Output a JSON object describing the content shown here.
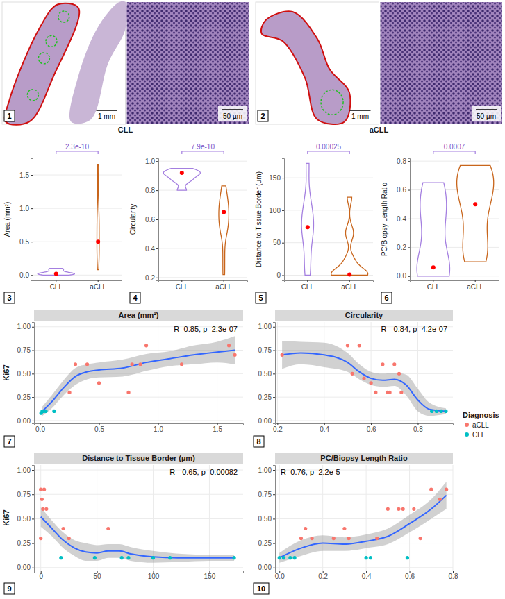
{
  "chart_data": [
    {
      "type": "image",
      "panel_label": "1",
      "title": "CLL",
      "scale_bars": [
        "1 mm",
        "50 µm"
      ]
    },
    {
      "type": "image",
      "panel_label": "2",
      "title": "aCLL",
      "scale_bars": [
        "1 mm",
        "50 µm"
      ]
    },
    {
      "type": "violin",
      "panel_label": "3",
      "ylabel": "Area (mm²)",
      "categories": [
        "CLL",
        "aCLL"
      ],
      "values": [
        [
          0.0,
          0.01,
          0.02,
          0.02,
          0.03,
          0.05,
          0.08,
          0.1
        ],
        [
          0.08,
          0.25,
          0.3,
          0.4,
          0.5,
          0.5,
          0.75,
          0.78,
          0.85,
          0.9,
          1.2,
          1.6,
          1.65
        ]
      ],
      "medians": [
        0.02,
        0.5
      ],
      "colors": [
        "#a47fe0",
        "#c8651b"
      ],
      "annotation": "2.3e-10",
      "ylim": [
        -0.08,
        1.75
      ],
      "yticks": [
        {
          "value": 0,
          "label": "0.0"
        },
        0.5,
        {
          "value": 1,
          "label": "1.0"
        },
        1.5
      ],
      "grid": true
    },
    {
      "type": "violin",
      "panel_label": "4",
      "ylabel": "Circularity",
      "categories": [
        "CLL",
        "aCLL"
      ],
      "values": [
        [
          0.8,
          0.86,
          0.88,
          0.9,
          0.92,
          0.92,
          0.93,
          0.95
        ],
        [
          0.22,
          0.35,
          0.5,
          0.52,
          0.55,
          0.57,
          0.6,
          0.62,
          0.65,
          0.67,
          0.7,
          0.72,
          0.73,
          0.8,
          0.83
        ]
      ],
      "medians": [
        0.92,
        0.65
      ],
      "colors": [
        "#a47fe0",
        "#c8651b"
      ],
      "annotation": "7.9e-10",
      "ylim": [
        0.18,
        1.02
      ],
      "yticks": [
        0.2,
        0.4,
        0.6,
        0.8,
        {
          "value": 1,
          "label": "1.0"
        }
      ],
      "grid": true
    },
    {
      "type": "violin",
      "panel_label": "5",
      "ylabel": "Distance to Tissue Border (µm)",
      "categories": [
        "CLL",
        "aCLL"
      ],
      "values": [
        [
          0,
          18,
          48,
          72,
          75,
          78,
          100,
          115,
          172
        ],
        [
          0,
          0,
          0,
          1,
          1,
          2,
          3,
          5,
          20,
          25,
          60,
          70,
          120
        ]
      ],
      "medians": [
        74,
        1
      ],
      "colors": [
        "#a47fe0",
        "#c8651b"
      ],
      "annotation": "0.00025",
      "ylim": [
        -8,
        180
      ],
      "yticks": [
        0,
        50,
        100,
        150
      ],
      "grid": true
    },
    {
      "type": "violin",
      "panel_label": "6",
      "ylabel": "PC/Biopsy Length Ratio",
      "categories": [
        "CLL",
        "aCLL"
      ],
      "values": [
        [
          0,
          0.02,
          0.05,
          0.07,
          0.4,
          0.42,
          0.59,
          0.65
        ],
        [
          0.1,
          0.12,
          0.15,
          0.25,
          0.3,
          0.45,
          0.5,
          0.55,
          0.6,
          0.65,
          0.7,
          0.74,
          0.77,
          0.77
        ]
      ],
      "medians": [
        0.06,
        0.5
      ],
      "colors": [
        "#a47fe0",
        "#c8651b"
      ],
      "annotation": "0.0007",
      "ylim": [
        -0.03,
        0.82
      ],
      "yticks": [
        {
          "value": 0,
          "label": "0.0"
        },
        0.2,
        0.4,
        0.6,
        0.8
      ],
      "grid": true
    },
    {
      "type": "scatter",
      "panel_label": "7",
      "title": "Area (mm²)",
      "ylabel": "Ki67",
      "annotation": "R=0.85, p=2.3e-07",
      "legend": "right",
      "legend_title": "Diagnosis",
      "series": [
        {
          "name": "aCLL",
          "color": "#f8766d",
          "x": [
            0.25,
            0.3,
            0.4,
            0.5,
            0.75,
            0.78,
            0.85,
            0.9,
            1.2,
            1.6,
            1.65
          ],
          "values": [
            0.3,
            0.6,
            0.6,
            0.4,
            0.3,
            0.6,
            0.6,
            0.8,
            0.6,
            0.8,
            0.7
          ]
        },
        {
          "name": "CLL",
          "color": "#00bfc4",
          "x": [
            0.01,
            0.02,
            0.03,
            0.05,
            0.12
          ],
          "values": [
            0.08,
            0.1,
            0.1,
            0.1,
            0.1
          ]
        }
      ],
      "fit": {
        "x": [
          0.02,
          0.1,
          0.2,
          0.3,
          0.4,
          0.5,
          0.7,
          0.9,
          1.1,
          1.3,
          1.5,
          1.65
        ],
        "values": [
          0.1,
          0.2,
          0.35,
          0.47,
          0.52,
          0.54,
          0.56,
          0.62,
          0.66,
          0.7,
          0.73,
          0.75
        ],
        "lower": [
          0.05,
          0.13,
          0.27,
          0.38,
          0.44,
          0.46,
          0.47,
          0.53,
          0.58,
          0.6,
          0.62,
          0.6
        ],
        "upper": [
          0.15,
          0.27,
          0.43,
          0.56,
          0.6,
          0.62,
          0.65,
          0.71,
          0.74,
          0.8,
          0.84,
          0.9
        ]
      },
      "xlim": [
        -0.05,
        1.72
      ],
      "xticks": [
        {
          "value": 0,
          "label": "0.0"
        },
        0.5,
        {
          "value": 1,
          "label": "1.0"
        },
        1.5
      ],
      "ylim": [
        -0.03,
        1.05
      ],
      "yticks": [
        {
          "value": 0,
          "label": "0.00"
        },
        0.25,
        {
          "value": 0.5,
          "label": "0.50"
        },
        0.75,
        {
          "value": 1,
          "label": "1.00"
        }
      ],
      "grid": true
    },
    {
      "type": "scatter",
      "panel_label": "8",
      "title": "Circularity",
      "annotation": "R=-0.84, p=4.2e-07",
      "series": [
        {
          "name": "aCLL",
          "color": "#f8766d",
          "x": [
            0.22,
            0.5,
            0.52,
            0.55,
            0.57,
            0.6,
            0.62,
            0.65,
            0.67,
            0.68,
            0.7,
            0.72,
            0.73
          ],
          "values": [
            0.7,
            0.8,
            0.5,
            0.8,
            0.45,
            0.4,
            0.3,
            0.6,
            0.3,
            0.3,
            0.6,
            0.5,
            0.3
          ]
        },
        {
          "name": "CLL",
          "color": "#00bfc4",
          "x": [
            0.86,
            0.88,
            0.9,
            0.92
          ],
          "values": [
            0.1,
            0.1,
            0.1,
            0.1
          ]
        }
      ],
      "fit": {
        "x": [
          0.22,
          0.3,
          0.4,
          0.5,
          0.55,
          0.6,
          0.65,
          0.7,
          0.75,
          0.8,
          0.85,
          0.92
        ],
        "values": [
          0.7,
          0.72,
          0.7,
          0.62,
          0.52,
          0.45,
          0.43,
          0.44,
          0.38,
          0.22,
          0.12,
          0.1
        ],
        "lower": [
          0.55,
          0.6,
          0.57,
          0.52,
          0.44,
          0.38,
          0.36,
          0.37,
          0.27,
          0.1,
          0.05,
          0.07
        ],
        "upper": [
          0.85,
          0.84,
          0.83,
          0.72,
          0.6,
          0.52,
          0.5,
          0.51,
          0.49,
          0.34,
          0.19,
          0.13
        ]
      },
      "xlim": [
        0.19,
        0.95
      ],
      "xticks": [
        0.2,
        0.4,
        0.6,
        0.8
      ],
      "ylim": [
        -0.03,
        1.05
      ],
      "yticks": [
        {
          "value": 0,
          "label": "0.00"
        },
        0.25,
        {
          "value": 0.5,
          "label": "0.50"
        },
        0.75,
        {
          "value": 1,
          "label": "1.00"
        }
      ],
      "grid": true
    },
    {
      "type": "scatter",
      "panel_label": "9",
      "title": "Distance to Tissue Border (µm)",
      "ylabel": "Ki67",
      "annotation": "R=-0.65, p=0.00082",
      "series": [
        {
          "name": "aCLL",
          "color": "#f8766d",
          "x": [
            0,
            0,
            1,
            2,
            3,
            5,
            20,
            25,
            60
          ],
          "values": [
            0.8,
            0.3,
            0.7,
            0.6,
            0.8,
            0.6,
            0.4,
            0.3,
            0.4
          ]
        },
        {
          "name": "CLL",
          "color": "#00bfc4",
          "x": [
            18,
            48,
            72,
            78,
            100,
            115,
            172
          ],
          "values": [
            0.1,
            0.1,
            0.1,
            0.1,
            0.1,
            0.1,
            0.1
          ]
        }
      ],
      "fit": {
        "x": [
          0,
          10,
          20,
          30,
          40,
          50,
          60,
          70,
          80,
          100,
          125,
          150,
          172
        ],
        "values": [
          0.52,
          0.4,
          0.28,
          0.2,
          0.16,
          0.15,
          0.17,
          0.17,
          0.14,
          0.11,
          0.1,
          0.1,
          0.1
        ],
        "lower": [
          0.42,
          0.32,
          0.2,
          0.12,
          0.07,
          0.07,
          0.1,
          0.1,
          0.07,
          0.05,
          0.06,
          0.07,
          0.07
        ],
        "upper": [
          0.62,
          0.48,
          0.36,
          0.28,
          0.25,
          0.23,
          0.24,
          0.24,
          0.21,
          0.17,
          0.14,
          0.13,
          0.13
        ]
      },
      "xlim": [
        -6,
        180
      ],
      "xticks": [
        0,
        50,
        100,
        150
      ],
      "ylim": [
        -0.03,
        1.05
      ],
      "yticks": [
        {
          "value": 0,
          "label": "0.00"
        },
        0.25,
        {
          "value": 0.5,
          "label": "0.50"
        },
        0.75,
        {
          "value": 1,
          "label": "1.00"
        }
      ],
      "grid": true
    },
    {
      "type": "scatter",
      "panel_label": "10",
      "title": "PC/Biopsy Length Ratio",
      "annotation": "R=0.76, p=2.2e-5",
      "series": [
        {
          "name": "aCLL",
          "color": "#f8766d",
          "x": [
            0.1,
            0.12,
            0.15,
            0.25,
            0.3,
            0.32,
            0.45,
            0.5,
            0.55,
            0.57,
            0.62,
            0.65,
            0.7,
            0.74,
            0.77
          ],
          "values": [
            0.3,
            0.4,
            0.3,
            0.3,
            0.4,
            0.3,
            0.3,
            0.6,
            0.6,
            0.6,
            0.6,
            0.3,
            0.8,
            0.7,
            0.8
          ]
        },
        {
          "name": "CLL",
          "color": "#00bfc4",
          "x": [
            0,
            0.02,
            0.05,
            0.07,
            0.4,
            0.42,
            0.59
          ],
          "values": [
            0.1,
            0.1,
            0.1,
            0.1,
            0.1,
            0.1,
            0.1
          ]
        }
      ],
      "fit": {
        "x": [
          0,
          0.1,
          0.2,
          0.3,
          0.4,
          0.5,
          0.6,
          0.7,
          0.77
        ],
        "values": [
          0.1,
          0.2,
          0.25,
          0.24,
          0.27,
          0.32,
          0.45,
          0.6,
          0.74
        ],
        "lower": [
          0.05,
          0.12,
          0.17,
          0.17,
          0.2,
          0.24,
          0.36,
          0.5,
          0.6
        ],
        "upper": [
          0.15,
          0.28,
          0.33,
          0.31,
          0.34,
          0.4,
          0.54,
          0.7,
          0.88
        ]
      },
      "xlim": [
        -0.02,
        0.8
      ],
      "xticks": [
        {
          "value": 0,
          "label": "0.0"
        },
        0.2,
        0.4,
        0.6,
        0.8
      ],
      "ylim": [
        -0.03,
        1.05
      ],
      "yticks": [
        {
          "value": 0,
          "label": "0.00"
        },
        0.25,
        {
          "value": 0.5,
          "label": "0.50"
        },
        0.75,
        {
          "value": 1,
          "label": "1.00"
        }
      ],
      "grid": true
    }
  ]
}
